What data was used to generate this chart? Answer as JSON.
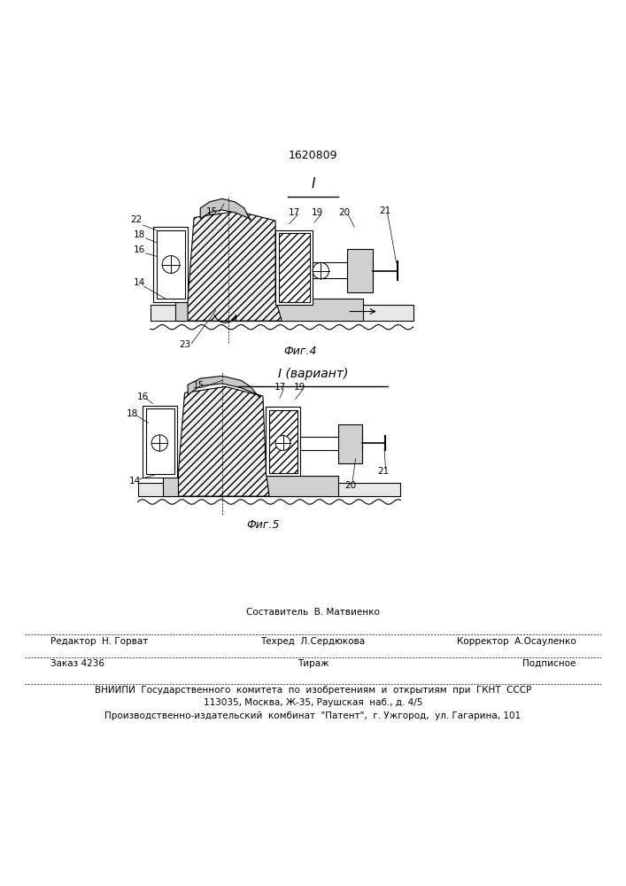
{
  "patent_number": "1620809",
  "bg_color": "#ffffff",
  "line_color": "#000000",
  "fig4_label": "I",
  "fig4_caption": "Фиг.4",
  "fig5_label": "I (вариант)",
  "fig5_caption": "Фиг.5",
  "footer_line1_col2_top": "Составитель  В. Матвиенко",
  "footer_line1_col1": "Редактор  Н. Горват",
  "footer_line1_col2_bot": "Техред  Л.Сердюкова",
  "footer_line1_col3": "Корректор  А.Осауленко",
  "footer_line2_col1": "Заказ 4236",
  "footer_line2_col2": "Тираж",
  "footer_line2_col3": "Подписное",
  "footer_line3": "ВНИИПИ  Государственного  комитета  по  изобретениям  и  открытиям  при  ГКНТ  СССР",
  "footer_line4": "113035, Москва, Ж-35, Раушская  наб., д. 4/5",
  "footer_line5": "Производственно-издательский  комбинат  \"Патент\",  г. Ужгород,  ул. Гагарина, 101"
}
